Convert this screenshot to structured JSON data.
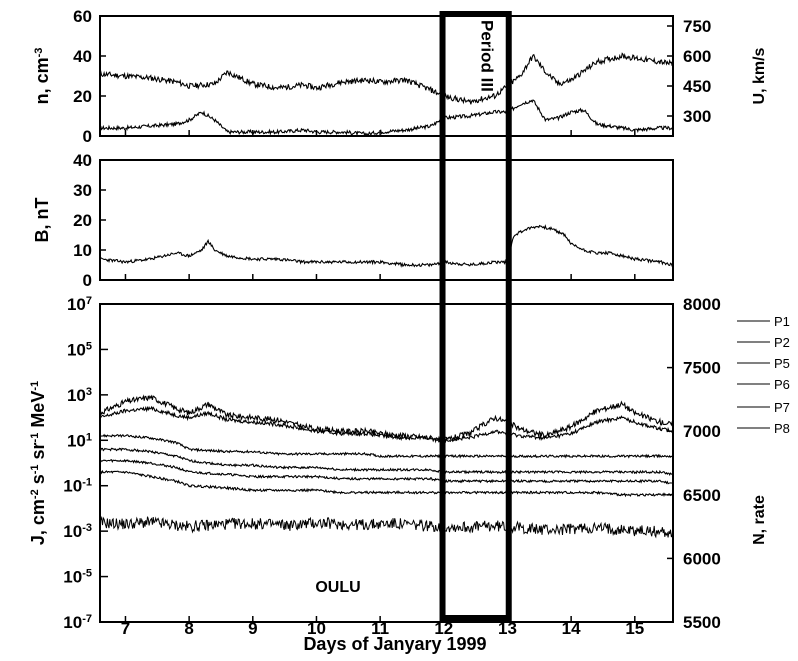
{
  "chart_data": [
    {
      "type": "line",
      "panel": "top",
      "xlabel": "",
      "ylabel": "n, cm",
      "ylabel_exp": "-3",
      "ylim": [
        0,
        60
      ],
      "yticks": [
        "0",
        "20",
        "40",
        "60"
      ],
      "y2label": "U, km/s",
      "y2lim": [
        200,
        800
      ],
      "y2ticks": [
        "300",
        "450",
        "600",
        "750"
      ],
      "series": [
        {
          "axis": "right",
          "x": [
            6.6,
            7.0,
            7.4,
            7.8,
            8.0,
            8.4,
            8.6,
            9.0,
            9.4,
            9.8,
            10.0,
            10.4,
            10.8,
            11.0,
            11.4,
            11.8,
            12.0,
            12.4,
            12.8,
            13.0,
            13.2,
            13.4,
            13.6,
            13.8,
            14.0,
            14.4,
            14.8,
            15.0,
            15.4,
            15.6
          ],
          "y": [
            510,
            500,
            490,
            470,
            450,
            460,
            520,
            460,
            440,
            455,
            440,
            470,
            480,
            470,
            480,
            430,
            400,
            370,
            400,
            450,
            500,
            600,
            520,
            460,
            480,
            570,
            600,
            590,
            570,
            560
          ]
        },
        {
          "axis": "left",
          "x": [
            6.6,
            7.0,
            7.4,
            7.8,
            8.0,
            8.2,
            8.4,
            8.6,
            9.0,
            9.4,
            9.8,
            10.0,
            10.4,
            10.8,
            11.0,
            11.4,
            11.8,
            12.0,
            12.4,
            12.8,
            13.0,
            13.2,
            13.4,
            13.6,
            13.8,
            14.0,
            14.2,
            14.4,
            14.8,
            15.0,
            15.4,
            15.6
          ],
          "y": [
            4,
            4,
            5,
            6,
            8,
            12,
            8,
            2,
            2,
            2,
            3,
            2,
            2,
            1,
            2,
            3,
            5,
            9,
            10,
            12,
            12,
            16,
            18,
            8,
            9,
            12,
            13,
            6,
            4,
            3,
            4,
            4
          ]
        }
      ]
    },
    {
      "type": "line",
      "panel": "middle",
      "ylabel": "B, nT",
      "ylim": [
        0,
        40
      ],
      "yticks": [
        "0",
        "10",
        "20",
        "30",
        "40"
      ],
      "series": [
        {
          "x": [
            6.6,
            7.0,
            7.4,
            7.8,
            8.0,
            8.2,
            8.3,
            8.4,
            8.6,
            9.0,
            9.4,
            9.8,
            10.0,
            10.4,
            10.8,
            11.0,
            11.4,
            11.8,
            12.0,
            12.4,
            12.8,
            13.0,
            13.1,
            13.3,
            13.5,
            13.7,
            13.9,
            14.0,
            14.2,
            14.4,
            14.6,
            14.8,
            15.0,
            15.4,
            15.6
          ],
          "y": [
            7,
            6,
            7,
            9,
            8,
            10,
            13,
            10,
            8,
            7,
            7,
            6,
            6,
            6,
            6,
            6,
            5,
            5,
            6,
            5,
            6,
            6,
            15,
            17,
            18,
            17,
            15,
            12,
            10,
            9,
            9,
            8,
            7,
            6,
            5
          ]
        }
      ]
    },
    {
      "type": "line",
      "panel": "bottom",
      "ylabel": "J, cm",
      "ylabel_parts": [
        "J, cm",
        "-2",
        " s",
        "-1",
        " sr",
        "-1",
        " MeV",
        "-1"
      ],
      "ylim": [
        -7,
        7
      ],
      "yscale": "log",
      "ytick_bases": [
        "10",
        "10",
        "10",
        "10",
        "10",
        "10",
        "10",
        "10"
      ],
      "ytick_exps": [
        "-7",
        "-5",
        "-3",
        "-1",
        "1",
        "3",
        "5",
        "7"
      ],
      "y2label": "N, rate",
      "y2lim": [
        5500,
        8000
      ],
      "y2ticks": [
        "5500",
        "6000",
        "6500",
        "7000",
        "7500",
        "8000"
      ],
      "annotation": "OULU",
      "legend": [
        "P1",
        "P2",
        "P5",
        "P6",
        "P7",
        "P8"
      ],
      "legend_position": "right",
      "series": [
        {
          "name": "P1",
          "x": [
            6.6,
            7.0,
            7.4,
            7.8,
            8.0,
            8.3,
            8.6,
            9.0,
            9.4,
            9.8,
            10.0,
            10.4,
            10.8,
            11.0,
            11.4,
            11.8,
            12.0,
            12.4,
            12.8,
            13.0,
            13.2,
            13.6,
            14.0,
            14.4,
            14.8,
            15.0,
            15.4,
            15.6
          ],
          "y": [
            2.2,
            2.7,
            2.9,
            2.4,
            2.2,
            2.6,
            2.1,
            2.0,
            1.9,
            1.6,
            1.5,
            1.4,
            1.4,
            1.3,
            1.2,
            1.1,
            1.0,
            1.3,
            2.0,
            1.8,
            1.5,
            1.2,
            1.6,
            2.3,
            2.6,
            2.2,
            1.8,
            1.7
          ]
        },
        {
          "name": "P2",
          "x": [
            6.6,
            7.0,
            7.4,
            7.8,
            8.0,
            8.3,
            8.6,
            9.0,
            9.4,
            9.8,
            10.0,
            10.4,
            10.8,
            11.0,
            11.4,
            11.8,
            12.0,
            12.4,
            12.8,
            13.0,
            13.2,
            13.6,
            14.0,
            14.4,
            14.8,
            15.0,
            15.4,
            15.6
          ],
          "y": [
            2.0,
            2.3,
            2.4,
            2.1,
            2.0,
            2.2,
            1.9,
            1.8,
            1.7,
            1.5,
            1.4,
            1.3,
            1.3,
            1.2,
            1.1,
            1.1,
            1.0,
            1.1,
            1.4,
            1.3,
            1.2,
            1.1,
            1.3,
            1.8,
            2.0,
            1.8,
            1.5,
            1.4
          ]
        },
        {
          "name": "P5",
          "x": [
            6.6,
            7.0,
            7.4,
            7.8,
            8.0,
            8.6,
            9.0,
            9.4,
            9.8,
            10.0,
            10.4,
            10.8,
            11.0,
            11.4,
            11.8,
            12.0,
            12.4,
            12.8,
            13.0,
            13.4,
            13.8,
            14.0,
            14.4,
            14.8,
            15.0,
            15.4,
            15.6
          ],
          "y": [
            1.2,
            1.2,
            1.1,
            0.9,
            0.6,
            0.5,
            0.5,
            0.4,
            0.4,
            0.4,
            0.4,
            0.4,
            0.3,
            0.3,
            0.3,
            0.3,
            0.3,
            0.3,
            0.3,
            0.3,
            0.3,
            0.3,
            0.3,
            0.3,
            0.3,
            0.3,
            0.3
          ]
        },
        {
          "name": "P6",
          "x": [
            6.6,
            7.0,
            7.4,
            7.8,
            8.0,
            8.6,
            9.0,
            9.4,
            9.8,
            10.0,
            10.4,
            10.8,
            11.0,
            11.4,
            11.8,
            12.0,
            12.4,
            12.8,
            13.0,
            13.4,
            13.8,
            14.0,
            14.4,
            14.8,
            15.0,
            15.4,
            15.6
          ],
          "y": [
            0.6,
            0.6,
            0.5,
            0.3,
            0.1,
            -0.1,
            -0.1,
            -0.2,
            -0.2,
            -0.2,
            -0.3,
            -0.3,
            -0.3,
            -0.3,
            -0.3,
            -0.4,
            -0.4,
            -0.4,
            -0.4,
            -0.4,
            -0.4,
            -0.4,
            -0.4,
            -0.4,
            -0.4,
            -0.4,
            -0.5
          ]
        },
        {
          "name": "P7",
          "x": [
            6.6,
            7.0,
            7.4,
            7.8,
            8.0,
            8.6,
            9.0,
            9.4,
            9.8,
            10.0,
            10.4,
            10.8,
            11.0,
            11.4,
            11.8,
            12.0,
            12.4,
            12.8,
            13.0,
            13.4,
            13.8,
            14.0,
            14.4,
            14.8,
            15.0,
            15.4,
            15.6
          ],
          "y": [
            0.1,
            0.1,
            0.0,
            -0.2,
            -0.4,
            -0.5,
            -0.6,
            -0.6,
            -0.6,
            -0.6,
            -0.7,
            -0.7,
            -0.7,
            -0.7,
            -0.7,
            -0.8,
            -0.8,
            -0.8,
            -0.8,
            -0.8,
            -0.8,
            -0.8,
            -0.8,
            -0.8,
            -0.8,
            -0.8,
            -0.9
          ]
        },
        {
          "name": "P8",
          "x": [
            6.6,
            7.0,
            7.4,
            7.8,
            8.0,
            8.6,
            9.0,
            9.4,
            9.8,
            10.0,
            10.4,
            10.8,
            11.0,
            11.4,
            11.8,
            12.0,
            12.4,
            12.8,
            13.0,
            13.4,
            13.8,
            14.0,
            14.4,
            14.8,
            15.0,
            15.4,
            15.6
          ],
          "y": [
            -0.4,
            -0.4,
            -0.6,
            -0.8,
            -1.0,
            -1.1,
            -1.2,
            -1.2,
            -1.2,
            -1.2,
            -1.3,
            -1.3,
            -1.3,
            -1.3,
            -1.3,
            -1.3,
            -1.3,
            -1.3,
            -1.3,
            -1.3,
            -1.3,
            -1.3,
            -1.3,
            -1.4,
            -1.4,
            -1.4,
            -1.4
          ]
        },
        {
          "name": "OULU",
          "axis": "right",
          "x": [
            6.6,
            7.0,
            7.4,
            7.8,
            8.0,
            8.4,
            8.8,
            9.2,
            9.6,
            10.0,
            10.4,
            10.8,
            11.2,
            11.6,
            12.0,
            12.4,
            12.8,
            13.0,
            13.4,
            13.8,
            14.2,
            14.6,
            15.0,
            15.4,
            15.6
          ],
          "y": [
            6280,
            6270,
            6285,
            6260,
            6250,
            6265,
            6275,
            6270,
            6260,
            6280,
            6270,
            6265,
            6275,
            6260,
            6250,
            6245,
            6255,
            6250,
            6230,
            6225,
            6240,
            6235,
            6220,
            6210,
            6200
          ]
        }
      ]
    }
  ],
  "x_axis": {
    "label": "Days of Janyary 1999",
    "range": [
      6.6,
      15.6
    ],
    "ticks": [
      "7",
      "8",
      "9",
      "10",
      "11",
      "12",
      "13",
      "14",
      "15"
    ]
  },
  "period_box": {
    "label": "Period III",
    "x_range": [
      11.98,
      13.02
    ]
  }
}
